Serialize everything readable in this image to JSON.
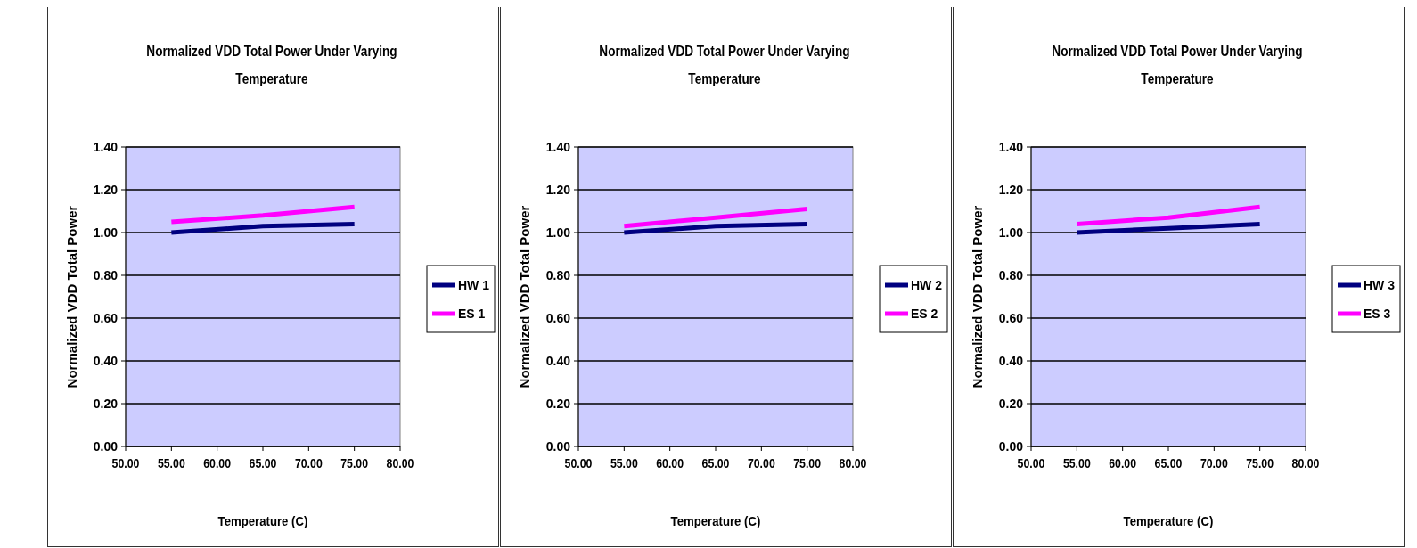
{
  "chart_data": [
    {
      "type": "line",
      "title": "Normalized VDD Total Power Under Varying Temperature",
      "xlabel": "Temperature (C)",
      "ylabel": "Normalized VDD Total Power",
      "x": [
        55,
        65,
        75
      ],
      "series": [
        {
          "name": "HW 1",
          "color": "#000080",
          "values": [
            1.0,
            1.03,
            1.04
          ]
        },
        {
          "name": "ES 1",
          "color": "#ff00ff",
          "values": [
            1.05,
            1.08,
            1.12
          ]
        }
      ],
      "xlim": [
        50,
        80
      ],
      "xticks": [
        {
          "value": 50,
          "label": "50.00"
        },
        {
          "value": 55,
          "label": "55.00"
        },
        {
          "value": 60,
          "label": "60.00"
        },
        {
          "value": 65,
          "label": "65.00"
        },
        {
          "value": 70,
          "label": "70.00"
        },
        {
          "value": 75,
          "label": "75.00"
        },
        {
          "value": 80,
          "label": "80.00"
        }
      ],
      "ylim": [
        0,
        1.4
      ],
      "yticks": [
        {
          "value": 0,
          "label": "0.00"
        },
        {
          "value": 0.2,
          "label": "0.20"
        },
        {
          "value": 0.4,
          "label": "0.40"
        },
        {
          "value": 0.6,
          "label": "0.60"
        },
        {
          "value": 0.8,
          "label": "0.80"
        },
        {
          "value": 1,
          "label": "1.00"
        },
        {
          "value": 1.2,
          "label": "1.20"
        },
        {
          "value": 1.4,
          "label": "1.40"
        }
      ],
      "grid": "y",
      "legend": "right",
      "marker": "none"
    },
    {
      "type": "line",
      "title": "Normalized VDD Total Power Under Varying Temperature",
      "xlabel": "Temperature (C)",
      "ylabel": "Normalized VDD Total Power",
      "x": [
        55,
        65,
        75
      ],
      "series": [
        {
          "name": "HW 2",
          "color": "#000080",
          "values": [
            1.0,
            1.03,
            1.04
          ]
        },
        {
          "name": "ES 2",
          "color": "#ff00ff",
          "values": [
            1.03,
            1.07,
            1.11
          ]
        }
      ],
      "xlim": [
        50,
        80
      ],
      "xticks": [
        {
          "value": 50,
          "label": "50.00"
        },
        {
          "value": 55,
          "label": "55.00"
        },
        {
          "value": 60,
          "label": "60.00"
        },
        {
          "value": 65,
          "label": "65.00"
        },
        {
          "value": 70,
          "label": "70.00"
        },
        {
          "value": 75,
          "label": "75.00"
        },
        {
          "value": 80,
          "label": "80.00"
        }
      ],
      "ylim": [
        0,
        1.4
      ],
      "yticks": [
        {
          "value": 0,
          "label": "0.00"
        },
        {
          "value": 0.2,
          "label": "0.20"
        },
        {
          "value": 0.4,
          "label": "0.40"
        },
        {
          "value": 0.6,
          "label": "0.60"
        },
        {
          "value": 0.8,
          "label": "0.80"
        },
        {
          "value": 1,
          "label": "1.00"
        },
        {
          "value": 1.2,
          "label": "1.20"
        },
        {
          "value": 1.4,
          "label": "1.40"
        }
      ],
      "grid": "y",
      "legend": "right",
      "marker": "none"
    },
    {
      "type": "line",
      "title": "Normalized VDD Total Power Under Varying Temperature",
      "xlabel": "Temperature (C)",
      "ylabel": "Normalized VDD Total Power",
      "x": [
        55,
        65,
        75
      ],
      "series": [
        {
          "name": "HW 3",
          "color": "#000080",
          "values": [
            1.0,
            1.02,
            1.04
          ]
        },
        {
          "name": "ES 3",
          "color": "#ff00ff",
          "values": [
            1.04,
            1.07,
            1.12
          ]
        }
      ],
      "xlim": [
        50,
        80
      ],
      "xticks": [
        {
          "value": 50,
          "label": "50.00"
        },
        {
          "value": 55,
          "label": "55.00"
        },
        {
          "value": 60,
          "label": "60.00"
        },
        {
          "value": 65,
          "label": "65.00"
        },
        {
          "value": 70,
          "label": "70.00"
        },
        {
          "value": 75,
          "label": "75.00"
        },
        {
          "value": 80,
          "label": "80.00"
        }
      ],
      "ylim": [
        0,
        1.4
      ],
      "yticks": [
        {
          "value": 0,
          "label": "0.00"
        },
        {
          "value": 0.2,
          "label": "0.20"
        },
        {
          "value": 0.4,
          "label": "0.40"
        },
        {
          "value": 0.6,
          "label": "0.60"
        },
        {
          "value": 0.8,
          "label": "0.80"
        },
        {
          "value": 1,
          "label": "1.00"
        },
        {
          "value": 1.2,
          "label": "1.20"
        },
        {
          "value": 1.4,
          "label": "1.40"
        }
      ],
      "grid": "y",
      "legend": "right",
      "marker": "none"
    }
  ]
}
